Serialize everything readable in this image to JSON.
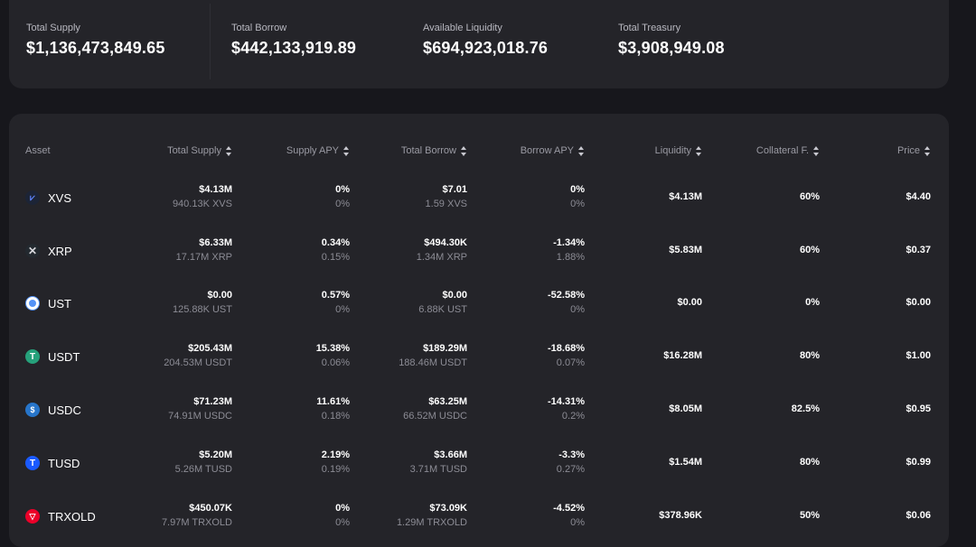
{
  "summary": [
    {
      "label": "Total Supply",
      "value": "$1,136,473,849.65"
    },
    {
      "label": "Total Borrow",
      "value": "$442,133,919.89"
    },
    {
      "label": "Available Liquidity",
      "value": "$694,923,018.76"
    },
    {
      "label": "Total Treasury",
      "value": "$3,908,949.08"
    }
  ],
  "table": {
    "headers": [
      "Asset",
      "Total Supply",
      "Supply APY",
      "Total Borrow",
      "Borrow APY",
      "Liquidity",
      "Collateral F.",
      "Price"
    ],
    "rows": [
      {
        "asset": "XVS",
        "icon": "xvs-icon",
        "color": "#1c2436",
        "supply": "$4.13M",
        "supply_sub": "940.13K XVS",
        "supply_apy": "0%",
        "supply_apy_sub": "0%",
        "borrow": "$7.01",
        "borrow_sub": "1.59 XVS",
        "borrow_apy": "0%",
        "borrow_apy_sub": "0%",
        "liquidity": "$4.13M",
        "collateral": "60%",
        "price": "$4.40"
      },
      {
        "asset": "XRP",
        "icon": "xrp-icon",
        "color": "#23292f",
        "supply": "$6.33M",
        "supply_sub": "17.17M XRP",
        "supply_apy": "0.34%",
        "supply_apy_sub": "0.15%",
        "borrow": "$494.30K",
        "borrow_sub": "1.34M XRP",
        "borrow_apy": "-1.34%",
        "borrow_apy_sub": "1.88%",
        "liquidity": "$5.83M",
        "collateral": "60%",
        "price": "$0.37"
      },
      {
        "asset": "UST",
        "icon": "ust-icon",
        "color": "#5493f7",
        "supply": "$0.00",
        "supply_sub": "125.88K UST",
        "supply_apy": "0.57%",
        "supply_apy_sub": "0%",
        "borrow": "$0.00",
        "borrow_sub": "6.88K UST",
        "borrow_apy": "-52.58%",
        "borrow_apy_sub": "0%",
        "liquidity": "$0.00",
        "collateral": "0%",
        "price": "$0.00"
      },
      {
        "asset": "USDT",
        "icon": "usdt-icon",
        "color": "#26a17b",
        "supply": "$205.43M",
        "supply_sub": "204.53M USDT",
        "supply_apy": "15.38%",
        "supply_apy_sub": "0.06%",
        "borrow": "$189.29M",
        "borrow_sub": "188.46M USDT",
        "borrow_apy": "-18.68%",
        "borrow_apy_sub": "0.07%",
        "liquidity": "$16.28M",
        "collateral": "80%",
        "price": "$1.00"
      },
      {
        "asset": "USDC",
        "icon": "usdc-icon",
        "color": "#2775ca",
        "supply": "$71.23M",
        "supply_sub": "74.91M USDC",
        "supply_apy": "11.61%",
        "supply_apy_sub": "0.18%",
        "borrow": "$63.25M",
        "borrow_sub": "66.52M USDC",
        "borrow_apy": "-14.31%",
        "borrow_apy_sub": "0.2%",
        "liquidity": "$8.05M",
        "collateral": "82.5%",
        "price": "$0.95"
      },
      {
        "asset": "TUSD",
        "icon": "tusd-icon",
        "color": "#1a5aff",
        "supply": "$5.20M",
        "supply_sub": "5.26M TUSD",
        "supply_apy": "2.19%",
        "supply_apy_sub": "0.19%",
        "borrow": "$3.66M",
        "borrow_sub": "3.71M TUSD",
        "borrow_apy": "-3.3%",
        "borrow_apy_sub": "0.27%",
        "liquidity": "$1.54M",
        "collateral": "80%",
        "price": "$0.99"
      },
      {
        "asset": "TRXOLD",
        "icon": "trx-icon",
        "color": "#eb0029",
        "supply": "$450.07K",
        "supply_sub": "7.97M TRXOLD",
        "supply_apy": "0%",
        "supply_apy_sub": "0%",
        "borrow": "$73.09K",
        "borrow_sub": "1.29M TRXOLD",
        "borrow_apy": "-4.52%",
        "borrow_apy_sub": "0%",
        "liquidity": "$378.96K",
        "collateral": "50%",
        "price": "$0.06"
      }
    ]
  }
}
